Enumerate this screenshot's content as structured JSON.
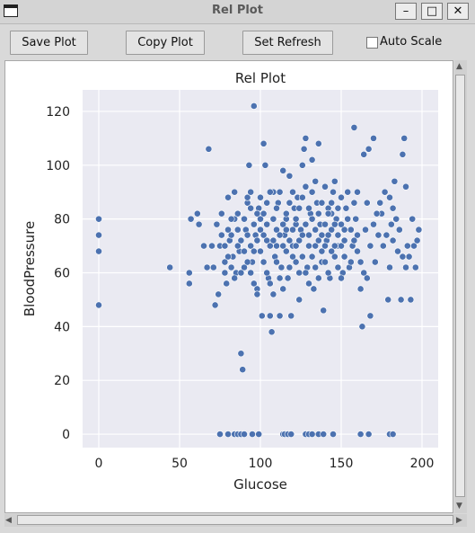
{
  "window": {
    "title": "Rel Plot"
  },
  "toolbar": {
    "save_label": "Save Plot",
    "copy_label": "Copy Plot",
    "refresh_label": "Set Refresh",
    "autoscale_label": "Auto Scale",
    "autoscale_checked": false
  },
  "colors": {
    "point": "#4c72b0",
    "plot_bg": "#eaeaf2",
    "grid": "#ffffff"
  },
  "chart_data": {
    "type": "scatter",
    "title": "Rel Plot",
    "xlabel": "Glucose",
    "ylabel": "BloodPressure",
    "xlim": [
      -10,
      210
    ],
    "ylim": [
      -5,
      128
    ],
    "xticks": [
      0,
      50,
      100,
      150,
      200
    ],
    "yticks": [
      0,
      20,
      40,
      60,
      80,
      100,
      120
    ],
    "grid": true,
    "points": [
      [
        0,
        80
      ],
      [
        0,
        74
      ],
      [
        0,
        68
      ],
      [
        0,
        48
      ],
      [
        44,
        62
      ],
      [
        56,
        60
      ],
      [
        56,
        56
      ],
      [
        57,
        80
      ],
      [
        61,
        82
      ],
      [
        62,
        78
      ],
      [
        65,
        70
      ],
      [
        67,
        62
      ],
      [
        68,
        106
      ],
      [
        70,
        70
      ],
      [
        71,
        62
      ],
      [
        72,
        48
      ],
      [
        73,
        78
      ],
      [
        74,
        52
      ],
      [
        75,
        70
      ],
      [
        76,
        82
      ],
      [
        78,
        64
      ],
      [
        79,
        56
      ],
      [
        80,
        88
      ],
      [
        81,
        72
      ],
      [
        82,
        74
      ],
      [
        83,
        66
      ],
      [
        84,
        90
      ],
      [
        85,
        60
      ],
      [
        86,
        82
      ],
      [
        87,
        68
      ],
      [
        88,
        30
      ],
      [
        89,
        24
      ],
      [
        90,
        62
      ],
      [
        91,
        76
      ],
      [
        92,
        86
      ],
      [
        93,
        100
      ],
      [
        94,
        70
      ],
      [
        95,
        64
      ],
      [
        96,
        122
      ],
      [
        97,
        74
      ],
      [
        98,
        54
      ],
      [
        99,
        84
      ],
      [
        100,
        80
      ],
      [
        101,
        44
      ],
      [
        102,
        108
      ],
      [
        103,
        100
      ],
      [
        104,
        72
      ],
      [
        105,
        58
      ],
      [
        106,
        44
      ],
      [
        107,
        38
      ],
      [
        108,
        90
      ],
      [
        109,
        66
      ],
      [
        110,
        76
      ],
      [
        111,
        86
      ],
      [
        112,
        44
      ],
      [
        113,
        62
      ],
      [
        114,
        98
      ],
      [
        115,
        74
      ],
      [
        116,
        80
      ],
      [
        117,
        58
      ],
      [
        118,
        96
      ],
      [
        119,
        44
      ],
      [
        120,
        70
      ],
      [
        121,
        84
      ],
      [
        122,
        64
      ],
      [
        123,
        88
      ],
      [
        124,
        50
      ],
      [
        125,
        76
      ],
      [
        126,
        100
      ],
      [
        127,
        106
      ],
      [
        128,
        110
      ],
      [
        129,
        62
      ],
      [
        130,
        74
      ],
      [
        131,
        82
      ],
      [
        132,
        102
      ],
      [
        133,
        54
      ],
      [
        134,
        70
      ],
      [
        135,
        86
      ],
      [
        136,
        108
      ],
      [
        137,
        78
      ],
      [
        138,
        64
      ],
      [
        139,
        46
      ],
      [
        140,
        92
      ],
      [
        141,
        72
      ],
      [
        142,
        84
      ],
      [
        143,
        58
      ],
      [
        144,
        76
      ],
      [
        145,
        90
      ],
      [
        146,
        66
      ],
      [
        147,
        80
      ],
      [
        148,
        70
      ],
      [
        150,
        88
      ],
      [
        151,
        60
      ],
      [
        152,
        76
      ],
      [
        153,
        84
      ],
      [
        155,
        62
      ],
      [
        157,
        70
      ],
      [
        158,
        114
      ],
      [
        159,
        80
      ],
      [
        160,
        74
      ],
      [
        162,
        54
      ],
      [
        163,
        40
      ],
      [
        164,
        104
      ],
      [
        165,
        76
      ],
      [
        166,
        86
      ],
      [
        167,
        106
      ],
      [
        168,
        44
      ],
      [
        170,
        110
      ],
      [
        171,
        64
      ],
      [
        173,
        74
      ],
      [
        175,
        82
      ],
      [
        177,
        90
      ],
      [
        179,
        50
      ],
      [
        180,
        62
      ],
      [
        181,
        78
      ],
      [
        182,
        72
      ],
      [
        183,
        94
      ],
      [
        185,
        68
      ],
      [
        187,
        50
      ],
      [
        188,
        104
      ],
      [
        189,
        110
      ],
      [
        190,
        92
      ],
      [
        191,
        70
      ],
      [
        192,
        66
      ],
      [
        193,
        50
      ],
      [
        194,
        80
      ],
      [
        195,
        70
      ],
      [
        196,
        62
      ],
      [
        197,
        72
      ],
      [
        198,
        76
      ],
      [
        75,
        0
      ],
      [
        80,
        0
      ],
      [
        84,
        0
      ],
      [
        86,
        0
      ],
      [
        88,
        0
      ],
      [
        90,
        0
      ],
      [
        95,
        0
      ],
      [
        99,
        0
      ],
      [
        114,
        0
      ],
      [
        115,
        0
      ],
      [
        117,
        0
      ],
      [
        119,
        0
      ],
      [
        128,
        0
      ],
      [
        130,
        0
      ],
      [
        132,
        0
      ],
      [
        136,
        0
      ],
      [
        139,
        0
      ],
      [
        145,
        0
      ],
      [
        162,
        0
      ],
      [
        167,
        0
      ],
      [
        180,
        0
      ],
      [
        182,
        0
      ],
      [
        92,
        88
      ],
      [
        94,
        84
      ],
      [
        96,
        78
      ],
      [
        98,
        72
      ],
      [
        100,
        68
      ],
      [
        102,
        64
      ],
      [
        104,
        60
      ],
      [
        106,
        56
      ],
      [
        108,
        52
      ],
      [
        110,
        70
      ],
      [
        112,
        74
      ],
      [
        114,
        78
      ],
      [
        116,
        82
      ],
      [
        118,
        86
      ],
      [
        120,
        90
      ],
      [
        122,
        78
      ],
      [
        124,
        72
      ],
      [
        126,
        66
      ],
      [
        128,
        60
      ],
      [
        130,
        56
      ],
      [
        132,
        80
      ],
      [
        134,
        76
      ],
      [
        136,
        72
      ],
      [
        138,
        68
      ],
      [
        140,
        64
      ],
      [
        142,
        60
      ],
      [
        144,
        82
      ],
      [
        146,
        78
      ],
      [
        148,
        74
      ],
      [
        150,
        70
      ],
      [
        152,
        66
      ],
      [
        154,
        80
      ],
      [
        156,
        76
      ],
      [
        158,
        72
      ],
      [
        160,
        68
      ],
      [
        162,
        64
      ],
      [
        164,
        60
      ],
      [
        166,
        58
      ],
      [
        168,
        70
      ],
      [
        170,
        78
      ],
      [
        172,
        82
      ],
      [
        174,
        86
      ],
      [
        176,
        70
      ],
      [
        178,
        74
      ],
      [
        180,
        88
      ],
      [
        182,
        84
      ],
      [
        184,
        80
      ],
      [
        186,
        76
      ],
      [
        188,
        66
      ],
      [
        190,
        62
      ],
      [
        86,
        76
      ],
      [
        88,
        72
      ],
      [
        90,
        68
      ],
      [
        92,
        64
      ],
      [
        94,
        60
      ],
      [
        96,
        56
      ],
      [
        98,
        52
      ],
      [
        100,
        76
      ],
      [
        102,
        82
      ],
      [
        104,
        86
      ],
      [
        106,
        90
      ],
      [
        108,
        72
      ],
      [
        110,
        64
      ],
      [
        112,
        58
      ],
      [
        114,
        54
      ],
      [
        116,
        68
      ],
      [
        118,
        72
      ],
      [
        120,
        76
      ],
      [
        122,
        80
      ],
      [
        124,
        84
      ],
      [
        126,
        88
      ],
      [
        128,
        92
      ],
      [
        130,
        70
      ],
      [
        132,
        66
      ],
      [
        134,
        62
      ],
      [
        136,
        58
      ],
      [
        138,
        74
      ],
      [
        140,
        78
      ],
      [
        142,
        82
      ],
      [
        144,
        86
      ],
      [
        146,
        70
      ],
      [
        148,
        62
      ],
      [
        150,
        58
      ],
      [
        84,
        80
      ],
      [
        86,
        70
      ],
      [
        88,
        60
      ],
      [
        90,
        80
      ],
      [
        92,
        74
      ],
      [
        94,
        90
      ],
      [
        96,
        68
      ],
      [
        98,
        82
      ],
      [
        100,
        88
      ],
      [
        102,
        74
      ],
      [
        104,
        78
      ],
      [
        106,
        70
      ],
      [
        108,
        80
      ],
      [
        110,
        84
      ],
      [
        112,
        90
      ],
      [
        114,
        70
      ],
      [
        116,
        76
      ],
      [
        118,
        62
      ],
      [
        120,
        66
      ],
      [
        122,
        70
      ],
      [
        124,
        60
      ],
      [
        126,
        74
      ],
      [
        128,
        78
      ],
      [
        130,
        84
      ],
      [
        132,
        90
      ],
      [
        134,
        94
      ],
      [
        136,
        82
      ],
      [
        138,
        86
      ],
      [
        140,
        70
      ],
      [
        142,
        74
      ],
      [
        144,
        68
      ],
      [
        146,
        94
      ],
      [
        148,
        84
      ],
      [
        150,
        78
      ],
      [
        152,
        72
      ],
      [
        154,
        90
      ],
      [
        156,
        64
      ],
      [
        158,
        86
      ],
      [
        160,
        90
      ],
      [
        76,
        74
      ],
      [
        78,
        70
      ],
      [
        80,
        76
      ],
      [
        82,
        80
      ],
      [
        82,
        62
      ],
      [
        84,
        58
      ],
      [
        78,
        60
      ],
      [
        80,
        66
      ]
    ]
  }
}
